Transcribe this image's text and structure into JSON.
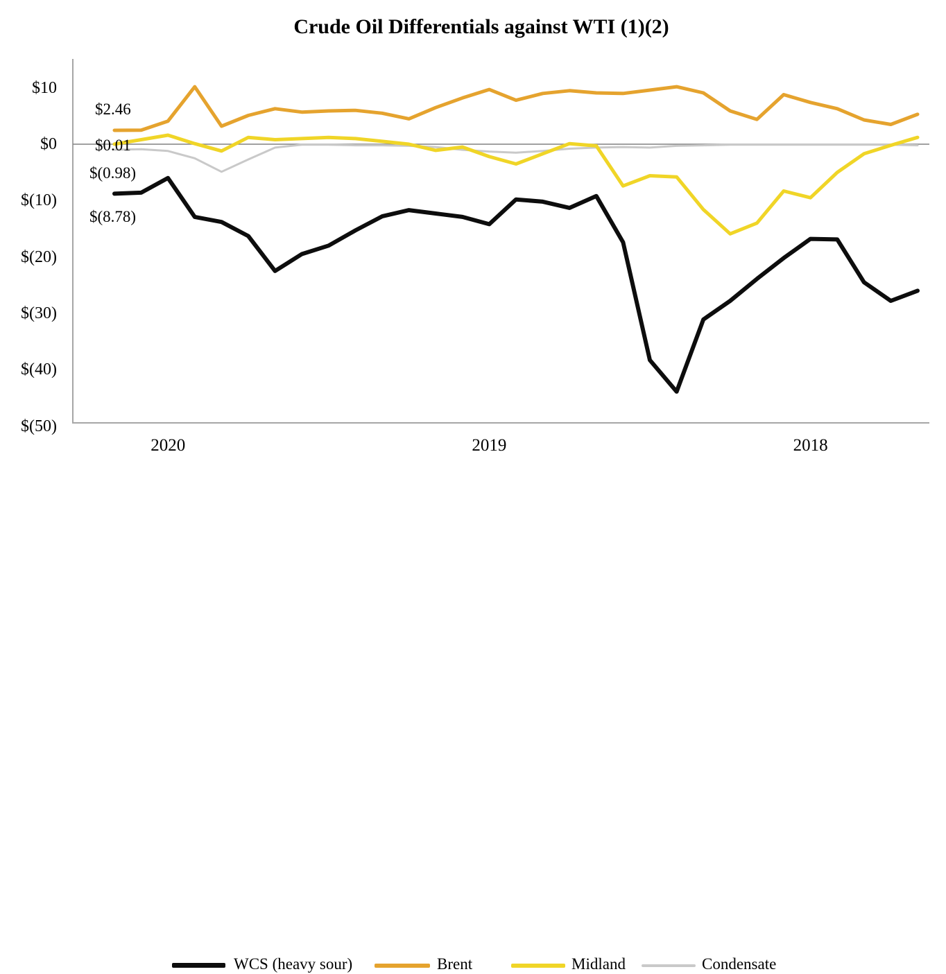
{
  "chart_data": {
    "type": "line",
    "title": "Crude Oil Differentials against WTI (1)(2)",
    "ylabel": "",
    "xlabel": "",
    "ylim": [
      -50,
      15
    ],
    "grid": "zero-line-only",
    "legend_position": "bottom",
    "x_axis_note": "monthly points, most recent month at left",
    "n_points": 31,
    "y_tick_labels": [
      "$10",
      "$0",
      "$(10)",
      "$(20)",
      "$(30)",
      "$(40)",
      "$(50)"
    ],
    "y_tick_values": [
      10,
      0,
      -10,
      -20,
      -30,
      -40,
      -50
    ],
    "x_tick_labels": [
      {
        "label": "2020",
        "at_point_index": 2
      },
      {
        "label": "2019",
        "at_point_index": 14
      },
      {
        "label": "2018",
        "at_point_index": 26
      }
    ],
    "series": [
      {
        "name": "WCS (heavy sour)",
        "color": "#0d0d0d",
        "values": [
          -8.78,
          -8.6,
          -6.0,
          -12.9,
          -13.8,
          -16.3,
          -22.5,
          -19.5,
          -18.0,
          -15.3,
          -12.8,
          -11.7,
          -12.3,
          -12.9,
          -14.2,
          -9.8,
          -10.2,
          -11.3,
          -9.2,
          -17.4,
          -38.3,
          -43.9,
          -31.1,
          -27.8,
          -23.9,
          -20.2,
          -16.8,
          -16.9,
          -24.5,
          -27.8,
          -26.0
        ]
      },
      {
        "name": "Brent",
        "color": "#e5a32e",
        "values": [
          2.46,
          2.5,
          4.1,
          10.2,
          3.2,
          5.1,
          6.3,
          5.7,
          5.9,
          6.0,
          5.5,
          4.5,
          6.5,
          8.2,
          9.7,
          7.8,
          9.0,
          9.5,
          9.1,
          9.0,
          9.6,
          10.2,
          9.1,
          5.9,
          4.4,
          8.8,
          7.4,
          6.3,
          4.3,
          3.5,
          5.3
        ]
      },
      {
        "name": "Midland",
        "color": "#f0d527",
        "values": [
          0.01,
          0.8,
          1.6,
          0.1,
          -1.2,
          1.2,
          0.8,
          1.0,
          1.2,
          1.0,
          0.5,
          0.0,
          -1.1,
          -0.5,
          -2.2,
          -3.5,
          -1.7,
          0.1,
          -0.3,
          -7.4,
          -5.6,
          -5.8,
          -11.6,
          -15.9,
          -14.0,
          -8.3,
          -9.5,
          -5.0,
          -1.7,
          -0.2,
          1.2
        ]
      },
      {
        "name": "Condensate",
        "color": "#c9c9c9",
        "values": [
          -0.98,
          -0.9,
          -1.2,
          -2.5,
          -4.9,
          -2.7,
          -0.6,
          -0.1,
          -0.1,
          -0.2,
          -0.2,
          -0.3,
          -0.5,
          -1.0,
          -1.3,
          -1.5,
          -1.2,
          -0.8,
          -0.6,
          -0.5,
          -0.6,
          -0.3,
          -0.2,
          -0.1,
          -0.1,
          -0.1,
          -0.1,
          -0.1,
          -0.1,
          -0.1,
          -0.2
        ]
      }
    ],
    "data_labels": [
      {
        "text": "$2.46",
        "series": "Brent"
      },
      {
        "text": "$0.01",
        "series": "Midland"
      },
      {
        "text": "$(0.98)",
        "series": "Condensate"
      },
      {
        "text": "$(8.78)",
        "series": "WCS (heavy sour)"
      }
    ],
    "zero_line_color": "#808080",
    "axis_frame_color": "#a6a6a6"
  }
}
